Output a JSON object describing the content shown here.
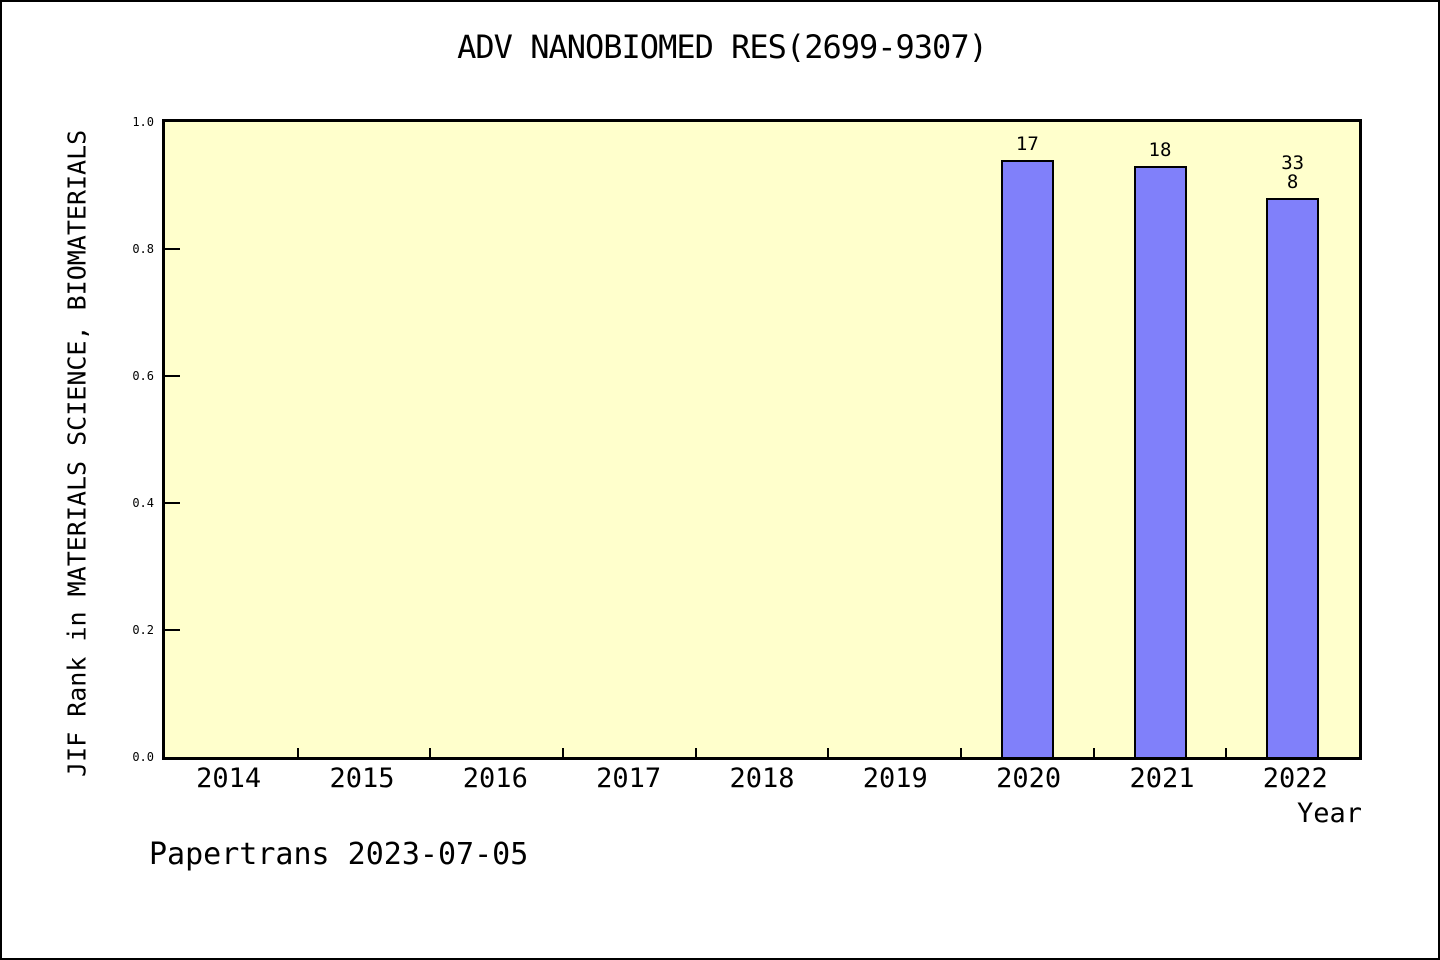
{
  "chart_data": {
    "type": "bar",
    "title": "ADV NANOBIOMED RES(2699-9307)",
    "xlabel": "Year",
    "ylabel": "JIF Rank in MATERIALS SCIENCE, BIOMATERIALS",
    "categories": [
      "2014",
      "2015",
      "2016",
      "2017",
      "2018",
      "2019",
      "2020",
      "2021",
      "2022"
    ],
    "values": [
      null,
      null,
      null,
      null,
      null,
      null,
      0.94,
      0.93,
      0.88
    ],
    "bar_labels": [
      [],
      [],
      [],
      [],
      [],
      [],
      [
        "17"
      ],
      [
        "18"
      ],
      [
        "33",
        "8"
      ]
    ],
    "ylim": [
      0,
      1
    ],
    "yticks": [
      "0.0",
      "0.2",
      "0.4",
      "0.6",
      "0.8",
      "1.0"
    ],
    "grid": false,
    "legend": "none",
    "bar_color": "#8080fa",
    "bar_border_color": "#000000",
    "plot_bg_color": "#ffffcc",
    "axis_color": "#000000"
  },
  "footer": {
    "text": "Papertrans 2023-07-05"
  }
}
